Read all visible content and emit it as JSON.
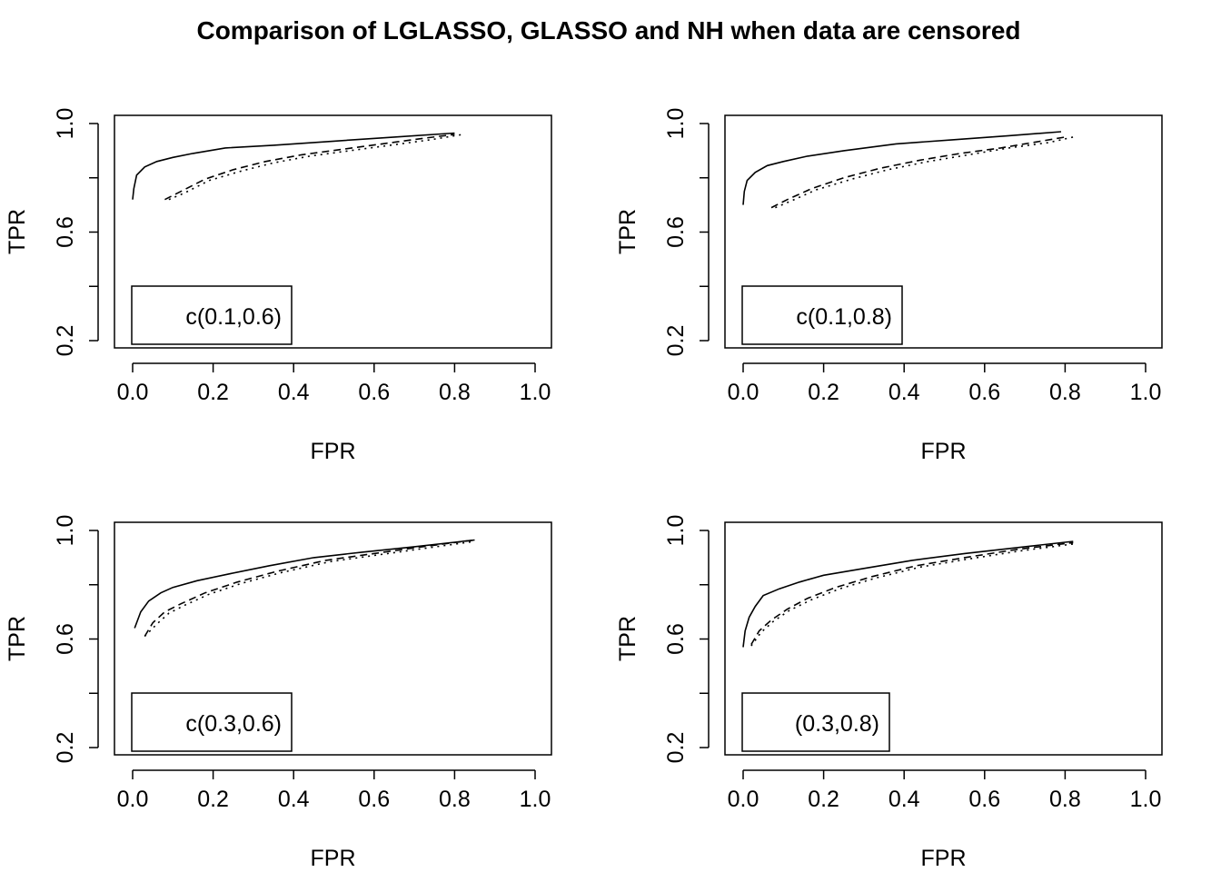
{
  "title": "Comparison of LGLASSO, GLASSO  and NH when data are censored",
  "chart_data": [
    {
      "type": "line",
      "xlabel": "FPR",
      "ylabel": "TPR",
      "xlim": [
        0,
        1
      ],
      "ylim": [
        0.2,
        1
      ],
      "xticks": [
        "0.0",
        "0.2",
        "0.4",
        "0.6",
        "0.8",
        "1.0"
      ],
      "yticks": [
        "0.2",
        "0.6",
        "1.0"
      ],
      "legend_text": "c(0.1,0.6)",
      "legend_position": "bottom-left",
      "series": [
        {
          "style": "solid",
          "x": [
            0.0,
            0.003,
            0.01,
            0.03,
            0.06,
            0.1,
            0.15,
            0.23,
            0.35,
            0.5,
            0.65,
            0.8
          ],
          "y": [
            0.72,
            0.76,
            0.81,
            0.84,
            0.86,
            0.875,
            0.89,
            0.91,
            0.92,
            0.935,
            0.95,
            0.965
          ]
        },
        {
          "style": "dashed",
          "x": [
            0.08,
            0.12,
            0.18,
            0.25,
            0.33,
            0.42,
            0.52,
            0.62,
            0.72,
            0.8
          ],
          "y": [
            0.72,
            0.75,
            0.795,
            0.83,
            0.86,
            0.885,
            0.905,
            0.925,
            0.945,
            0.96
          ]
        },
        {
          "style": "dotted",
          "x": [
            0.09,
            0.13,
            0.19,
            0.27,
            0.35,
            0.44,
            0.54,
            0.64,
            0.74,
            0.82
          ],
          "y": [
            0.72,
            0.745,
            0.79,
            0.825,
            0.855,
            0.88,
            0.9,
            0.92,
            0.94,
            0.96
          ]
        }
      ]
    },
    {
      "type": "line",
      "xlabel": "FPR",
      "ylabel": "TPR",
      "xlim": [
        0,
        1
      ],
      "ylim": [
        0.2,
        1
      ],
      "xticks": [
        "0.0",
        "0.2",
        "0.4",
        "0.6",
        "0.8",
        "1.0"
      ],
      "yticks": [
        "0.2",
        "0.6",
        "1.0"
      ],
      "legend_text": "c(0.1,0.8)",
      "legend_position": "bottom-left",
      "series": [
        {
          "style": "solid",
          "x": [
            0.0,
            0.003,
            0.01,
            0.03,
            0.06,
            0.1,
            0.16,
            0.25,
            0.38,
            0.52,
            0.66,
            0.79
          ],
          "y": [
            0.7,
            0.75,
            0.79,
            0.82,
            0.845,
            0.86,
            0.88,
            0.9,
            0.925,
            0.94,
            0.955,
            0.97
          ]
        },
        {
          "style": "dashed",
          "x": [
            0.07,
            0.11,
            0.17,
            0.25,
            0.34,
            0.44,
            0.54,
            0.64,
            0.74,
            0.8
          ],
          "y": [
            0.69,
            0.72,
            0.76,
            0.8,
            0.835,
            0.865,
            0.89,
            0.91,
            0.935,
            0.95
          ]
        },
        {
          "style": "dotted",
          "x": [
            0.08,
            0.12,
            0.18,
            0.27,
            0.36,
            0.46,
            0.56,
            0.66,
            0.76,
            0.82
          ],
          "y": [
            0.69,
            0.715,
            0.755,
            0.795,
            0.83,
            0.86,
            0.885,
            0.91,
            0.93,
            0.95
          ]
        }
      ]
    },
    {
      "type": "line",
      "xlabel": "FPR",
      "ylabel": "TPR",
      "xlim": [
        0,
        1
      ],
      "ylim": [
        0.2,
        1
      ],
      "xticks": [
        "0.0",
        "0.2",
        "0.4",
        "0.6",
        "0.8",
        "1.0"
      ],
      "yticks": [
        "0.2",
        "0.6",
        "1.0"
      ],
      "legend_text": "c(0.3,0.6)",
      "legend_position": "bottom-left",
      "series": [
        {
          "style": "solid",
          "x": [
            0.005,
            0.02,
            0.04,
            0.07,
            0.1,
            0.16,
            0.24,
            0.34,
            0.45,
            0.57,
            0.7,
            0.85
          ],
          "y": [
            0.64,
            0.7,
            0.74,
            0.77,
            0.79,
            0.815,
            0.84,
            0.87,
            0.9,
            0.92,
            0.94,
            0.965
          ]
        },
        {
          "style": "dashed",
          "x": [
            0.03,
            0.05,
            0.08,
            0.12,
            0.18,
            0.26,
            0.36,
            0.48,
            0.6,
            0.72,
            0.85
          ],
          "y": [
            0.61,
            0.66,
            0.7,
            0.73,
            0.77,
            0.81,
            0.85,
            0.89,
            0.915,
            0.94,
            0.965
          ]
        },
        {
          "style": "dotted",
          "x": [
            0.03,
            0.06,
            0.09,
            0.13,
            0.19,
            0.27,
            0.37,
            0.49,
            0.61,
            0.73,
            0.85
          ],
          "y": [
            0.61,
            0.655,
            0.695,
            0.725,
            0.765,
            0.805,
            0.845,
            0.885,
            0.91,
            0.935,
            0.96
          ]
        }
      ]
    },
    {
      "type": "line",
      "xlabel": "FPR",
      "ylabel": "TPR",
      "xlim": [
        0,
        1
      ],
      "ylim": [
        0.2,
        1
      ],
      "xticks": [
        "0.0",
        "0.2",
        "0.4",
        "0.6",
        "0.8",
        "1.0"
      ],
      "yticks": [
        "0.2",
        "0.6",
        "1.0"
      ],
      "legend_text": "(0.3,0.8)",
      "legend_position": "bottom-left",
      "series": [
        {
          "style": "solid",
          "x": [
            0.0,
            0.005,
            0.015,
            0.03,
            0.05,
            0.09,
            0.14,
            0.2,
            0.3,
            0.42,
            0.55,
            0.7,
            0.82
          ],
          "y": [
            0.57,
            0.63,
            0.68,
            0.72,
            0.76,
            0.785,
            0.81,
            0.835,
            0.86,
            0.89,
            0.915,
            0.94,
            0.96
          ]
        },
        {
          "style": "dashed",
          "x": [
            0.02,
            0.04,
            0.07,
            0.11,
            0.16,
            0.23,
            0.32,
            0.43,
            0.55,
            0.68,
            0.82
          ],
          "y": [
            0.58,
            0.63,
            0.67,
            0.71,
            0.75,
            0.79,
            0.83,
            0.87,
            0.9,
            0.93,
            0.955
          ]
        },
        {
          "style": "dotted",
          "x": [
            0.02,
            0.045,
            0.075,
            0.115,
            0.17,
            0.24,
            0.33,
            0.44,
            0.56,
            0.69,
            0.82
          ],
          "y": [
            0.575,
            0.625,
            0.665,
            0.705,
            0.745,
            0.785,
            0.825,
            0.865,
            0.895,
            0.925,
            0.95
          ]
        }
      ]
    }
  ]
}
